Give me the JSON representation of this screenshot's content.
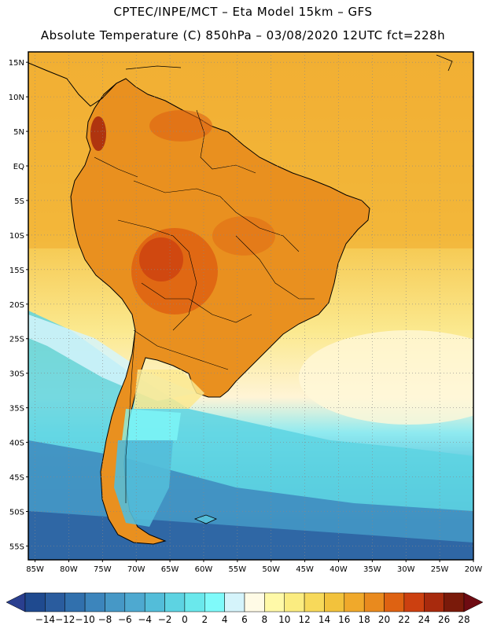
{
  "header": {
    "line1": "CPTEC/INPE/MCT –  Eta Model 15km – GFS",
    "line2": "Absolute Temperature (C) 850hPa – 03/08/2020 12UTC fct=228h"
  },
  "map": {
    "lat_labels": [
      "15N",
      "10N",
      "5N",
      "EQ",
      "5S",
      "10S",
      "15S",
      "20S",
      "25S",
      "30S",
      "35S",
      "40S",
      "45S",
      "50S",
      "55S"
    ],
    "lon_labels": [
      "85W",
      "80W",
      "75W",
      "70W",
      "65W",
      "60W",
      "55W",
      "50W",
      "45W",
      "40W",
      "35W",
      "30W",
      "25W",
      "20W"
    ],
    "lat_range": [
      -57,
      16.5
    ],
    "lon_range": [
      -86,
      -20
    ]
  },
  "colorbar": {
    "labels": [
      "-14",
      "-12",
      "-10",
      "-8",
      "-6",
      "-4",
      "-2",
      "0",
      "2",
      "4",
      "6",
      "8",
      "10",
      "12",
      "14",
      "16",
      "18",
      "20",
      "22",
      "24",
      "26",
      "28"
    ],
    "colors": [
      "#1f4a8f",
      "#2a5c9e",
      "#3170ad",
      "#3c85bc",
      "#4698c6",
      "#4ea9d0",
      "#53bdd9",
      "#5dd3e2",
      "#6ae8ec",
      "#7ffafa",
      "#d5f4fb",
      "#fffbe6",
      "#fff9a8",
      "#fbec80",
      "#f7d95a",
      "#f2c23c",
      "#f0a92b",
      "#e98a1e",
      "#de6212",
      "#cc4010",
      "#a82a0d",
      "#7a1a0a"
    ],
    "under_color": "#2a3f8f",
    "over_color": "#6e0b12"
  }
}
